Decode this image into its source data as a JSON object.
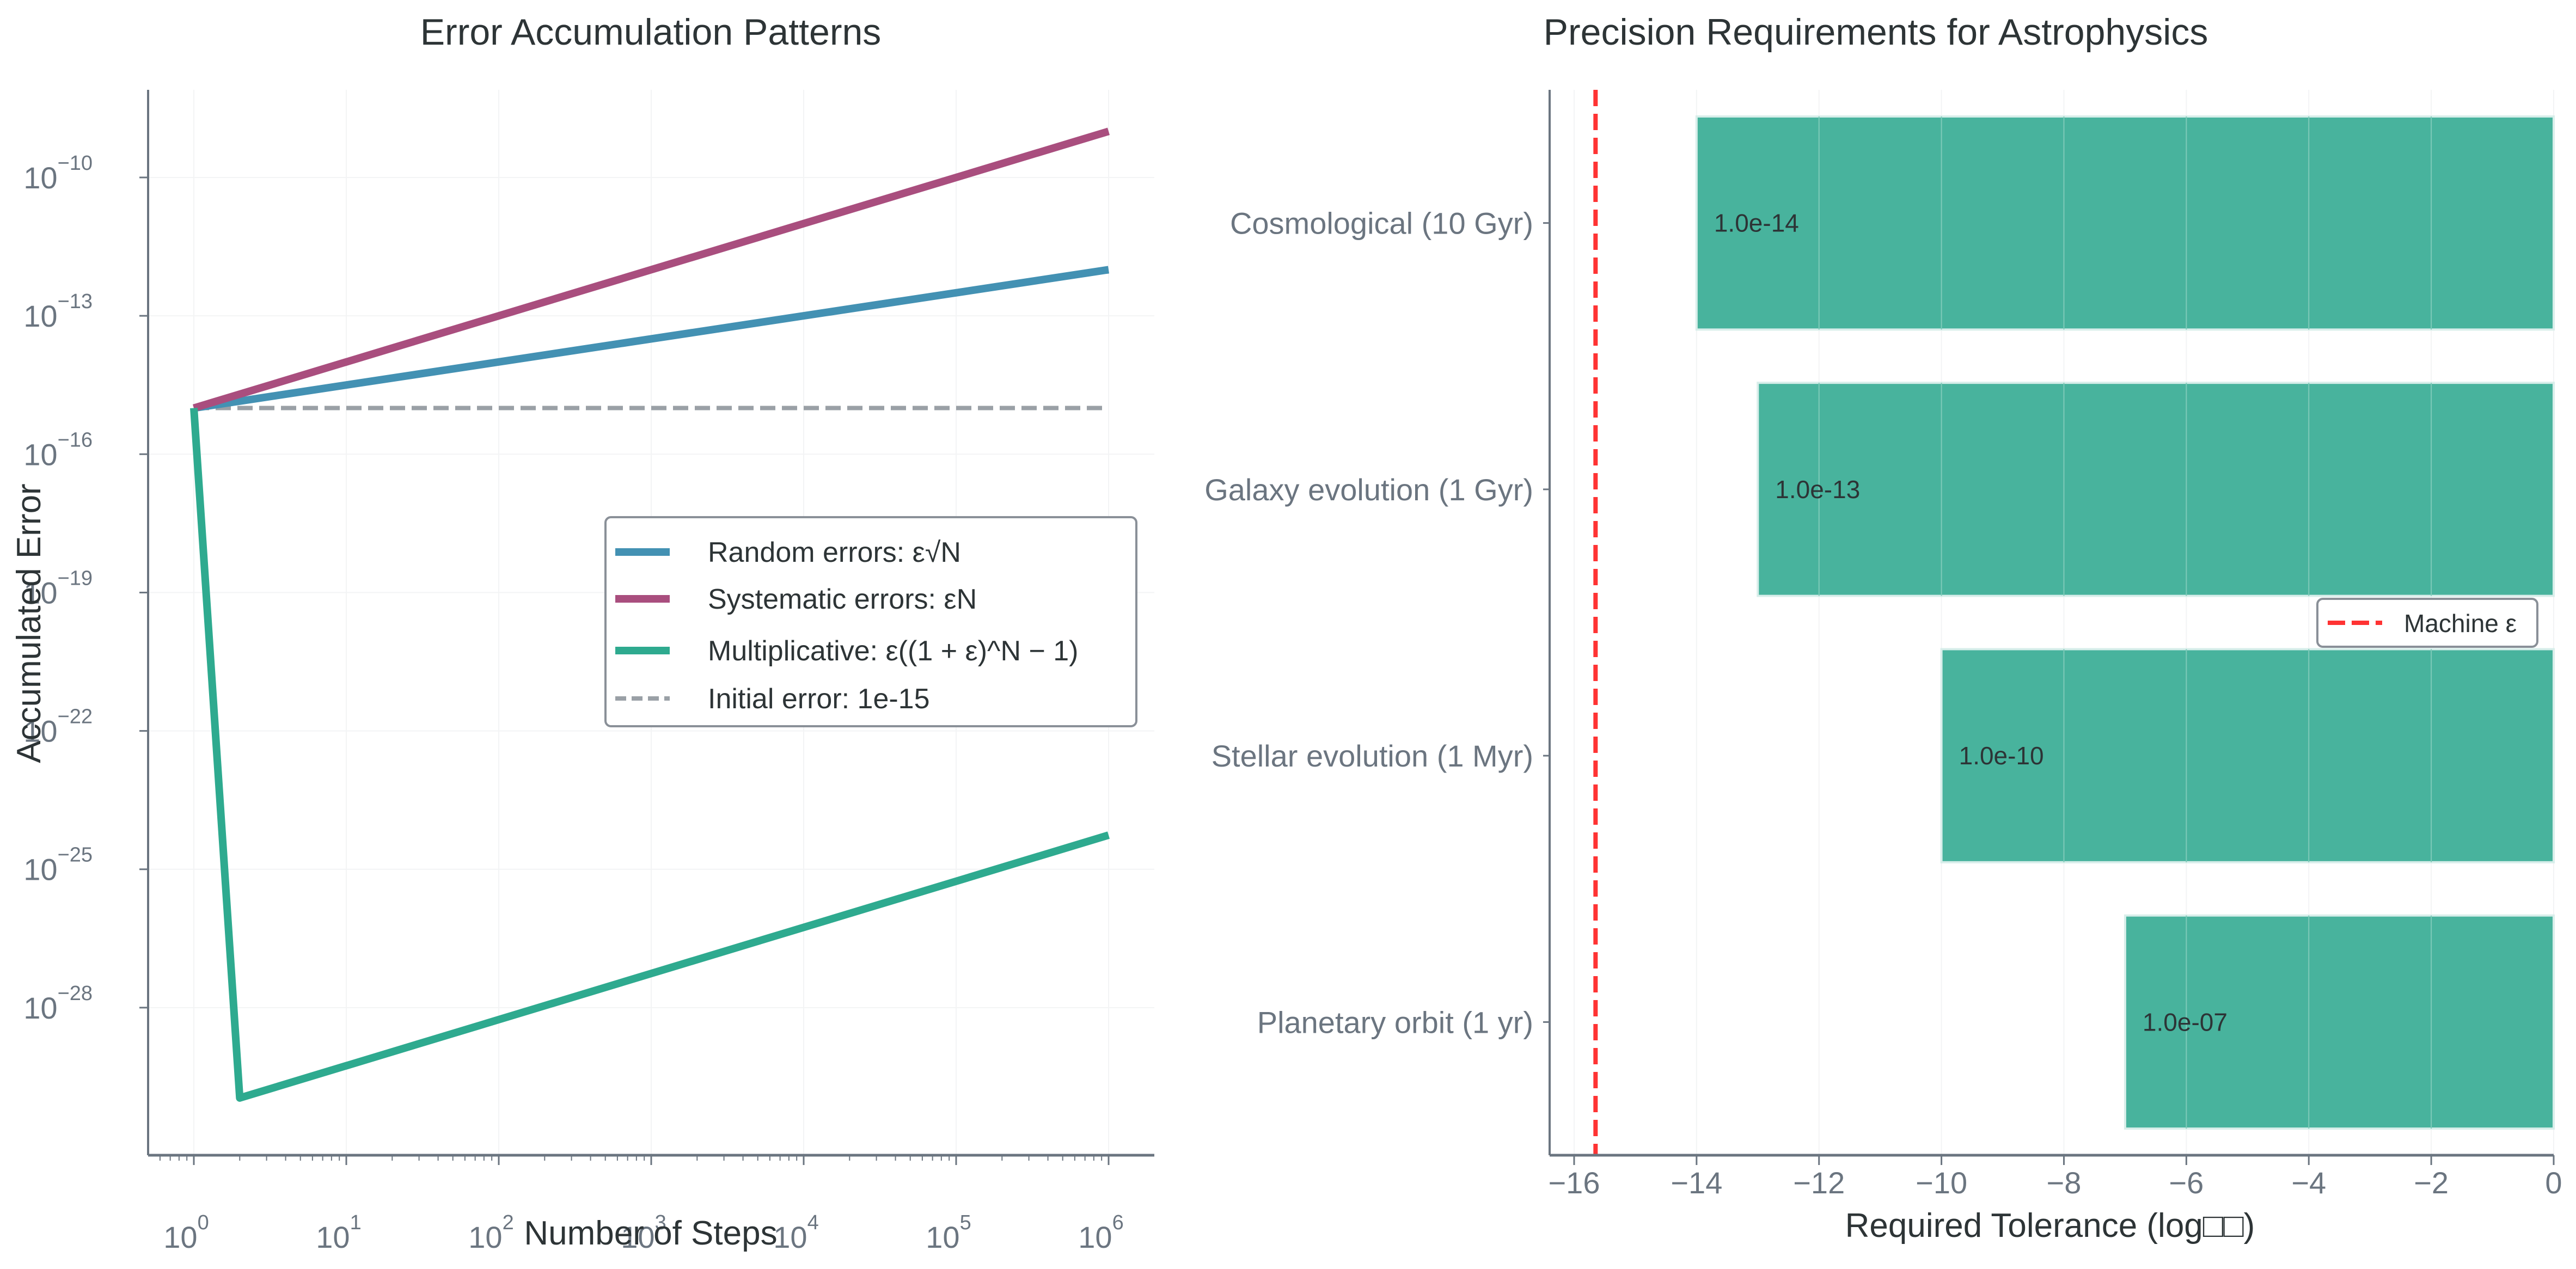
{
  "chart_data": [
    {
      "type": "line",
      "title": "Error Accumulation Patterns",
      "xlabel": "Number of Steps",
      "ylabel": "Accumulated Error",
      "xscale": "log",
      "yscale": "log",
      "xlim_log10": [
        -0.3,
        6.3
      ],
      "ylim_log10": [
        -31.2,
        -8.1
      ],
      "x_ticks": [
        {
          "base": "10",
          "exp": "0",
          "value_log10": 0
        },
        {
          "base": "10",
          "exp": "1",
          "value_log10": 1
        },
        {
          "base": "10",
          "exp": "2",
          "value_log10": 2
        },
        {
          "base": "10",
          "exp": "3",
          "value_log10": 3
        },
        {
          "base": "10",
          "exp": "4",
          "value_log10": 4
        },
        {
          "base": "10",
          "exp": "5",
          "value_log10": 5
        },
        {
          "base": "10",
          "exp": "6",
          "value_log10": 6
        }
      ],
      "y_ticks": [
        {
          "base": "10",
          "exp": "−10",
          "value_log10": -10
        },
        {
          "base": "10",
          "exp": "−13",
          "value_log10": -13
        },
        {
          "base": "10",
          "exp": "−16",
          "value_log10": -16
        },
        {
          "base": "10",
          "exp": "−19",
          "value_log10": -19
        },
        {
          "base": "10",
          "exp": "−22",
          "value_log10": -22
        },
        {
          "base": "10",
          "exp": "−25",
          "value_log10": -25
        },
        {
          "base": "10",
          "exp": "−28",
          "value_log10": -28
        }
      ],
      "grid": true,
      "legend_position": "center-right",
      "series": [
        {
          "name": "Random errors: ε√N",
          "color": "#4391b3",
          "style": "solid",
          "x": [
            1,
            1000000
          ],
          "y": [
            1e-15,
            1e-12
          ]
        },
        {
          "name": "Systematic errors: εN",
          "color": "#a94e7e",
          "style": "solid",
          "x": [
            1,
            1000000
          ],
          "y": [
            1e-15,
            1e-09
          ]
        },
        {
          "name": "Multiplicative: ε((1 + ε)^N − 1)",
          "color": "#2eaa8f",
          "style": "solid",
          "x": [
            1,
            2,
            1000000
          ],
          "y": [
            1e-15,
            1.1e-30,
            5.5e-25
          ]
        },
        {
          "name": "Initial error: 1e-15",
          "color": "#9aa0a6",
          "style": "dashed",
          "x": [
            1,
            1000000
          ],
          "y": [
            1e-15,
            1e-15
          ]
        }
      ]
    },
    {
      "type": "bar",
      "orientation": "horizontal",
      "title": "Precision Requirements for Astrophysics",
      "xlabel": "Required Tolerance (log₁₀)",
      "xlabel_rendered": "Required Tolerance (log□□)",
      "ylabel": "",
      "xlim": [
        -16.4,
        0
      ],
      "x_ticks": [
        "−16",
        "−14",
        "−12",
        "−10",
        "−8",
        "−6",
        "−4",
        "−2",
        "0"
      ],
      "x_tick_values": [
        -16,
        -14,
        -12,
        -10,
        -8,
        -6,
        -4,
        -2,
        0
      ],
      "categories": [
        "Cosmological (10 Gyr)",
        "Galaxy evolution (1 Gyr)",
        "Stellar evolution (1 Myr)",
        "Planetary orbit (1 yr)"
      ],
      "values": [
        -14,
        -13,
        -10,
        -7
      ],
      "value_labels": [
        "1.0e-14",
        "1.0e-13",
        "1.0e-10",
        "1.0e-07"
      ],
      "bar_color": "#48b39d",
      "reference_line": {
        "name": "Machine ε",
        "value": -15.65,
        "color": "#ff3333",
        "style": "dashed"
      },
      "grid": true,
      "legend_position": "center-right",
      "legend": [
        {
          "label": "Machine ε",
          "color": "#ff3333",
          "style": "dashed"
        }
      ]
    }
  ]
}
